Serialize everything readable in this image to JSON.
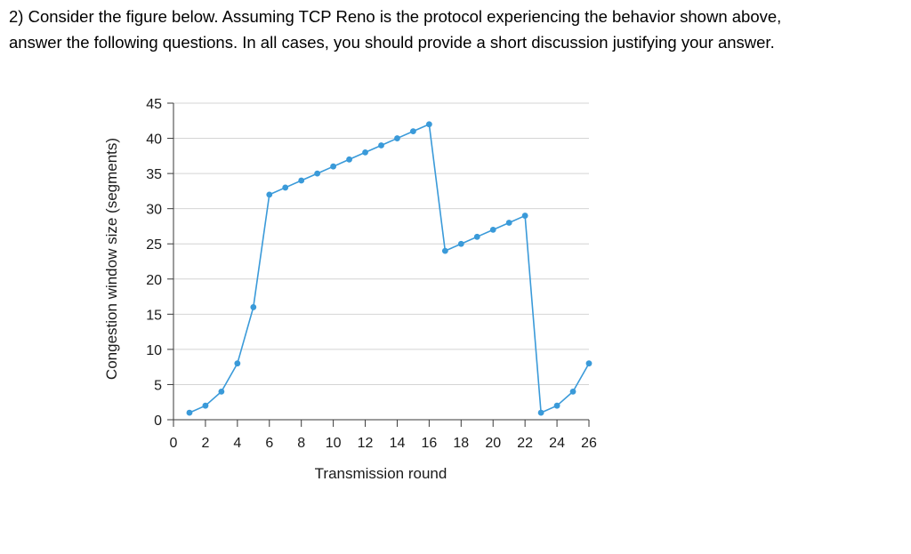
{
  "question": {
    "line1": "2) Consider the figure below. Assuming TCP Reno is the protocol experiencing the behavior shown above,",
    "line2": "answer the following questions. In all cases, you should provide a short discussion justifying your answer."
  },
  "colors": {
    "series": "#3a9ad9",
    "axis": "#3a3a3a",
    "grid": "#d4d4d4"
  },
  "chart_data": {
    "type": "line",
    "title": "",
    "xlabel": "Transmission round",
    "ylabel": "Congestion window size (segments)",
    "xlim": [
      0,
      26
    ],
    "ylim": [
      0,
      45
    ],
    "xticks": [
      0,
      2,
      4,
      6,
      8,
      10,
      12,
      14,
      16,
      18,
      20,
      22,
      24,
      26
    ],
    "yticks": [
      0,
      5,
      10,
      15,
      20,
      25,
      30,
      35,
      40,
      45
    ],
    "grid": "horizontal",
    "legend": "none",
    "series": [
      {
        "name": "cwnd",
        "x": [
          1,
          2,
          3,
          4,
          5,
          6,
          7,
          8,
          9,
          10,
          11,
          12,
          13,
          14,
          15,
          16,
          17,
          18,
          19,
          20,
          21,
          22,
          23,
          24,
          25,
          26
        ],
        "values": [
          1,
          2,
          4,
          8,
          16,
          32,
          33,
          34,
          35,
          36,
          37,
          38,
          39,
          40,
          41,
          42,
          24,
          25,
          26,
          27,
          28,
          29,
          1,
          2,
          4,
          8
        ]
      }
    ]
  }
}
